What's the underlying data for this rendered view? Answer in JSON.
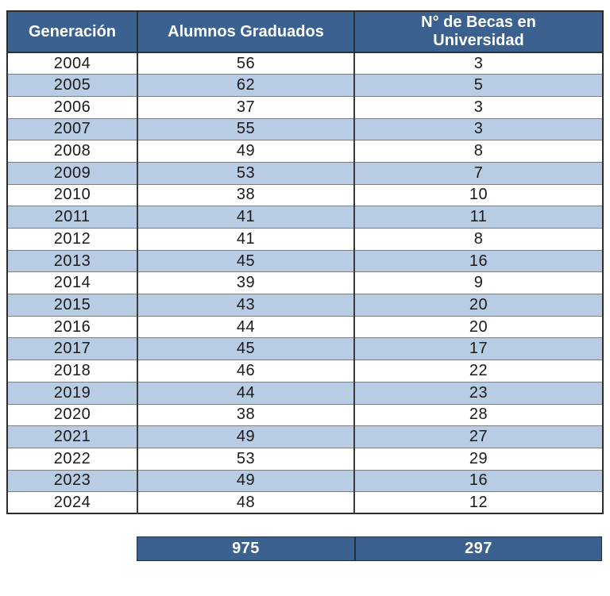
{
  "colors": {
    "header_bg": "#3A618F",
    "row_alt_bg": "#B8CCE4",
    "totals_bg": "#3A618F",
    "header_text": "#FFFFFF",
    "body_text": "#1A1A1A"
  },
  "chart_data": {
    "type": "table",
    "title": "",
    "columns": [
      "Generación",
      "Alumnos Graduados",
      "N° de Becas en Universidad"
    ],
    "rows": [
      [
        "2004",
        "56",
        "3"
      ],
      [
        "2005",
        "62",
        "5"
      ],
      [
        "2006",
        "37",
        "3"
      ],
      [
        "2007",
        "55",
        "3"
      ],
      [
        "2008",
        "49",
        "8"
      ],
      [
        "2009",
        "53",
        "7"
      ],
      [
        "2010",
        "38",
        "10"
      ],
      [
        "2011",
        "41",
        "11"
      ],
      [
        "2012",
        "41",
        "8"
      ],
      [
        "2013",
        "45",
        "16"
      ],
      [
        "2014",
        "39",
        "9"
      ],
      [
        "2015",
        "43",
        "20"
      ],
      [
        "2016",
        "44",
        "20"
      ],
      [
        "2017",
        "45",
        "17"
      ],
      [
        "2018",
        "46",
        "22"
      ],
      [
        "2019",
        "44",
        "23"
      ],
      [
        "2020",
        "38",
        "28"
      ],
      [
        "2021",
        "49",
        "27"
      ],
      [
        "2022",
        "53",
        "29"
      ],
      [
        "2023",
        "49",
        "16"
      ],
      [
        "2024",
        "48",
        "12"
      ]
    ],
    "totals_row": [
      "975",
      "297"
    ],
    "layout": {
      "striped": true,
      "stripe_start": "second-row",
      "totals_span_columns": [
        "Alumnos Graduados",
        "N° de Becas en Universidad"
      ]
    }
  }
}
